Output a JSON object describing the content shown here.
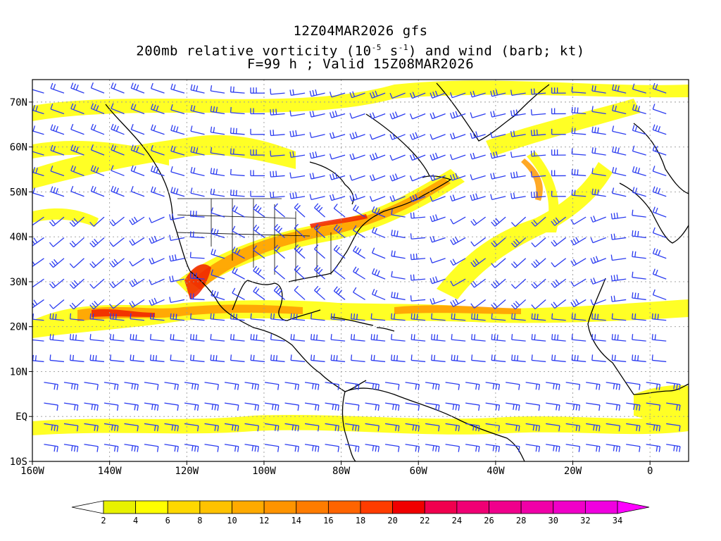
{
  "header": {
    "line1": "12Z04MAR2026 gfs",
    "line2_prefix": "200mb relative vorticity (10",
    "line2_exp1": "-5",
    "line2_mid": " s",
    "line2_exp2": "-1",
    "line2_suffix": ") and wind (barb; kt)",
    "line3": "F=99 h ; Valid 15Z08MAR2026"
  },
  "map": {
    "lon_range": [
      -160,
      10
    ],
    "lat_range": [
      -10,
      75
    ],
    "lon_ticks": [
      {
        "value": -160,
        "label": "160W"
      },
      {
        "value": -140,
        "label": "140W"
      },
      {
        "value": -120,
        "label": "120W"
      },
      {
        "value": -100,
        "label": "100W"
      },
      {
        "value": -80,
        "label": "80W"
      },
      {
        "value": -60,
        "label": "60W"
      },
      {
        "value": -40,
        "label": "40W"
      },
      {
        "value": -20,
        "label": "20W"
      },
      {
        "value": 0,
        "label": "0"
      }
    ],
    "lat_ticks": [
      {
        "value": 70,
        "label": "70N"
      },
      {
        "value": 60,
        "label": "60N"
      },
      {
        "value": 50,
        "label": "50N"
      },
      {
        "value": 40,
        "label": "40N"
      },
      {
        "value": 30,
        "label": "30N"
      },
      {
        "value": 20,
        "label": "20N"
      },
      {
        "value": 10,
        "label": "10N"
      },
      {
        "value": 0,
        "label": "EQ"
      },
      {
        "value": -10,
        "label": "10S"
      }
    ],
    "barb_color": "#2b3cf0",
    "coast_color": "#000000"
  },
  "colorbar": {
    "labels": [
      "2",
      "4",
      "6",
      "8",
      "10",
      "12",
      "14",
      "16",
      "18",
      "20",
      "22",
      "24",
      "26",
      "28",
      "30",
      "32",
      "34"
    ],
    "colors": [
      "#e8f200",
      "#ffff00",
      "#ffd800",
      "#ffc200",
      "#ffaa00",
      "#ff9400",
      "#ff7c00",
      "#ff6400",
      "#ff3c00",
      "#f00000",
      "#f0004e",
      "#f00074",
      "#f0008c",
      "#f000a8",
      "#f000c8",
      "#f000e0"
    ],
    "below_color": "#ffffff",
    "above_color": "#ff00ff"
  }
}
